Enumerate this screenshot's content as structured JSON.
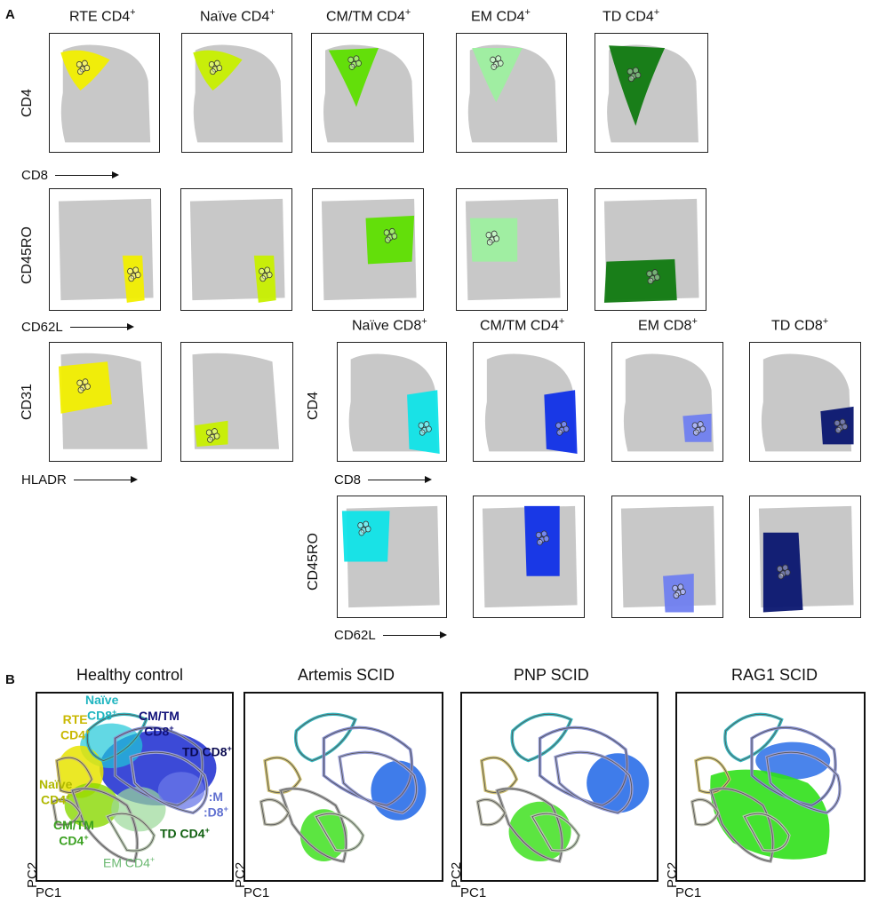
{
  "panelA": {
    "letter": "A",
    "row1": {
      "titles": [
        {
          "main": "RTE CD4",
          "sup": "+"
        },
        {
          "main": "Naïve CD4",
          "sup": "+"
        },
        {
          "main": "CM/TM CD4",
          "sup": "+"
        },
        {
          "main": "EM CD4",
          "sup": "+"
        },
        {
          "main": "TD CD4",
          "sup": "+"
        }
      ],
      "ylabel": "CD4",
      "xlabel": "CD8"
    },
    "row2": {
      "ylabel": "CD45RO",
      "xlabel": "CD62L"
    },
    "row3": {
      "ylabel": "CD31",
      "xlabel": "HLADR"
    },
    "row3cd8": {
      "titles": [
        {
          "main": "Naïve CD8",
          "sup": "+"
        },
        {
          "main": "CM/TM CD4",
          "sup": "+"
        },
        {
          "main": "EM CD8",
          "sup": "+"
        },
        {
          "main": "TD CD8",
          "sup": "+"
        }
      ],
      "ylabel": "CD4",
      "xlabel": "CD8"
    },
    "row4": {
      "ylabel": "CD45RO",
      "xlabel": "CD62L"
    },
    "ticks_x": [
      "-1E3",
      "0",
      "1E3",
      "1E4",
      "1E5"
    ],
    "ticks_y": [
      "1E5",
      "1E4",
      "1E3",
      "0"
    ],
    "colors": {
      "rte": "#f2ef00",
      "naive4": "#c8f000",
      "cmtm4": "#5ee000",
      "em4": "#9ef0a0",
      "td4": "#107a10",
      "naive8": "#10e4e8",
      "cmtm8": "#1030e8",
      "em8": "#7080f0",
      "td8": "#0a1670",
      "bg": "#c8c8c8"
    }
  },
  "panelB": {
    "letter": "B",
    "titles": [
      "Healthy control",
      "Artemis SCID",
      "PNP SCID",
      "RAG1 SCID"
    ],
    "xlabel": "PC1",
    "ylabel": "PC2",
    "labels": {
      "naive8": {
        "line1": "Naïve",
        "line2": "CD8",
        "sup": "+"
      },
      "rte": {
        "line1": "RTE",
        "line2": "CD4",
        "sup": "+"
      },
      "cmtm8": {
        "line1": "CM/TM",
        "line2": "CD8",
        "sup": "+"
      },
      "td8": {
        "line1": "TD CD8",
        "sup": "+"
      },
      "naive4": {
        "line1": "Naïve",
        "line2": "CD4",
        "sup": "+"
      },
      "em8": {
        "line1": ":M",
        "line2": ":D8",
        "sup": "+"
      },
      "cmtm4": {
        "line1": "CM/TM",
        "line2": "CD4",
        "sup": "+"
      },
      "td4": {
        "line1": "TD CD4",
        "sup": "+"
      },
      "em4": {
        "line1": "EM CD4",
        "sup": "+"
      }
    },
    "label_colors": {
      "naive8": "#1fb5c0",
      "rte": "#c9b800",
      "cmtm8": "#12127a",
      "td8": "#0a0a50",
      "naive4": "#b0b800",
      "em8": "#6070d0",
      "cmtm4": "#3aa020",
      "td4": "#106010",
      "em4": "#6ab870"
    }
  }
}
